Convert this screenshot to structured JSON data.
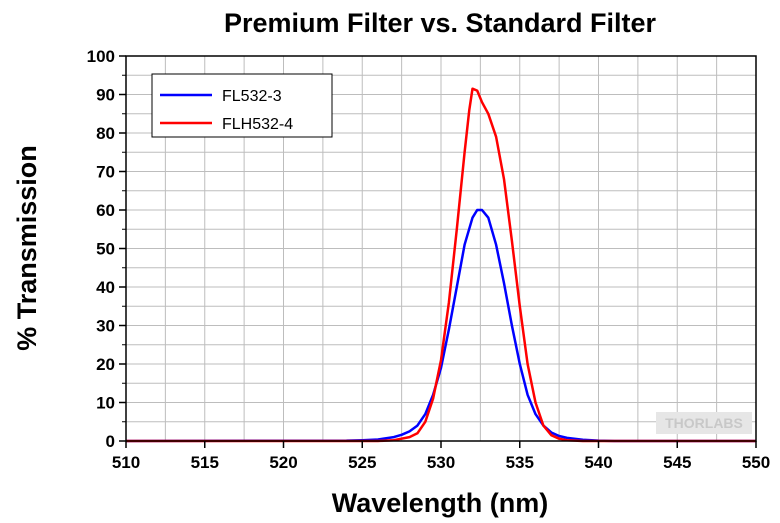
{
  "chart_data": {
    "type": "line",
    "title": "Premium Filter vs. Standard Filter",
    "xlabel": "Wavelength (nm)",
    "ylabel": "% Transmission",
    "xlim": [
      510,
      550
    ],
    "ylim": [
      0,
      100
    ],
    "xticks": [
      "510",
      "515",
      "520",
      "525",
      "530",
      "535",
      "540",
      "545",
      "550"
    ],
    "yticks": [
      "0",
      "10",
      "20",
      "30",
      "40",
      "50",
      "60",
      "70",
      "80",
      "90",
      "100"
    ],
    "grid": true,
    "legend_position": "top-left",
    "series": [
      {
        "name": "FL532-3",
        "color": "#0000ff",
        "x": [
          510,
          524,
          525,
          526,
          527,
          527.5,
          528,
          528.5,
          529,
          529.5,
          530,
          530.5,
          531,
          531.5,
          532,
          532.3,
          532.6,
          533,
          533.5,
          534,
          534.5,
          535,
          535.5,
          536,
          536.5,
          537,
          537.5,
          538,
          539,
          540,
          541,
          550
        ],
        "y": [
          0,
          0.1,
          0.2,
          0.4,
          1,
          1.6,
          2.5,
          4,
          7,
          12,
          19,
          29,
          40,
          51,
          58,
          60,
          60,
          58,
          51,
          41,
          30,
          20,
          12,
          7,
          4,
          2.2,
          1.3,
          0.8,
          0.3,
          0.1,
          0,
          0
        ]
      },
      {
        "name": "FLH532-4",
        "color": "#ff0000",
        "x": [
          510,
          526,
          527,
          528,
          528.5,
          529,
          529.5,
          530,
          530.5,
          531,
          531.5,
          531.8,
          532,
          532.3,
          532.6,
          533,
          533.5,
          534,
          534.5,
          535,
          535.5,
          536,
          536.5,
          537,
          537.5,
          538,
          539,
          550
        ],
        "y": [
          0,
          0,
          0.2,
          1,
          2,
          5,
          11,
          21,
          36,
          55,
          75,
          86,
          91.5,
          91,
          88,
          85,
          79,
          68,
          52,
          35,
          20,
          10,
          4,
          1.5,
          0.6,
          0.2,
          0,
          0
        ]
      }
    ]
  },
  "watermark": "THORLABS"
}
